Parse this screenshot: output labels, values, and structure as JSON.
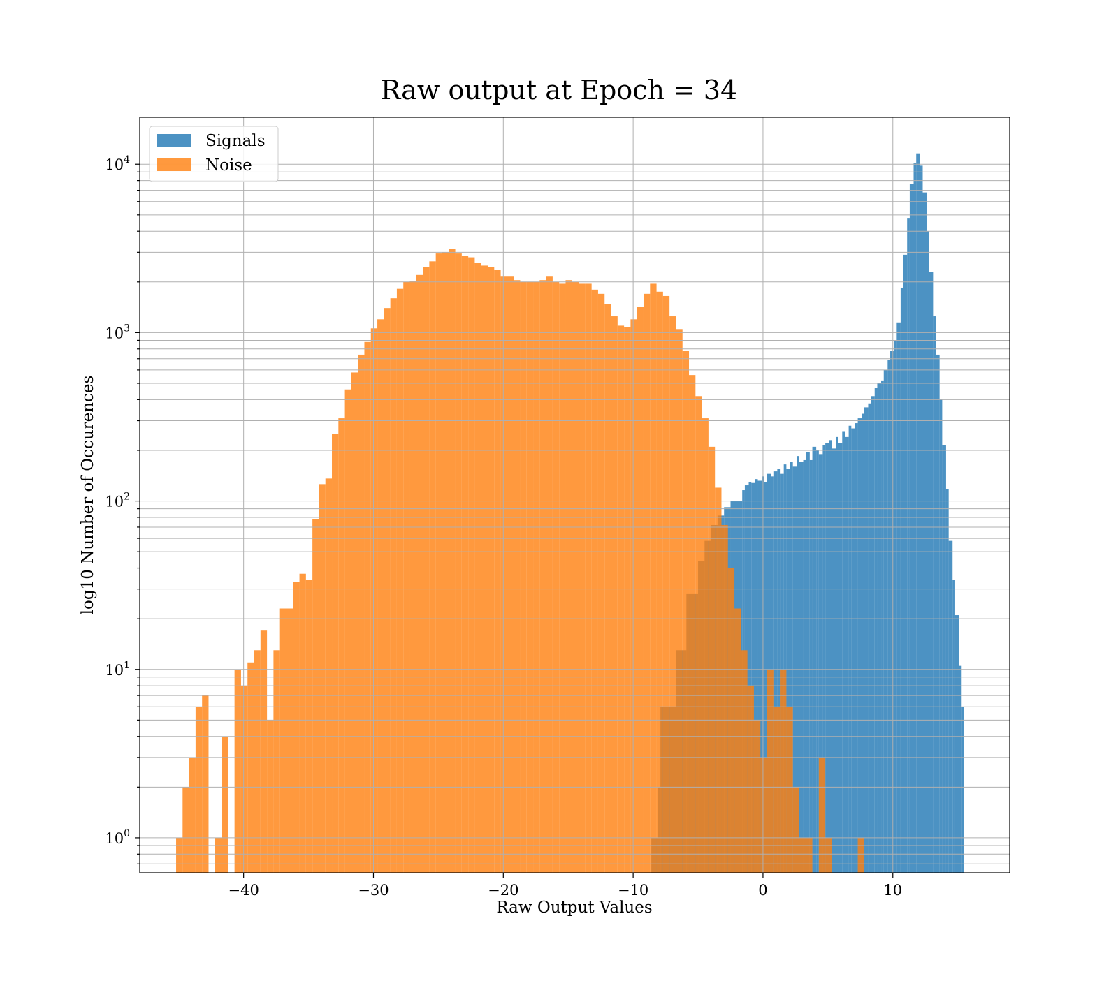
{
  "chart_data": {
    "type": "bar",
    "subtype": "histogram",
    "title": "Raw output at Epoch = 34",
    "xlabel": "Raw Output Values",
    "ylabel": "log10 Number of Occurences",
    "xlim": [
      -48,
      19
    ],
    "ylim": [
      0.62,
      19000
    ],
    "yscale": "log",
    "grid": true,
    "legend_position": "upper-left",
    "xticks": [
      -40,
      -30,
      -20,
      -10,
      0,
      10
    ],
    "xtick_labels": [
      "−40",
      "−30",
      "−20",
      "−10",
      "0",
      "10"
    ],
    "yticks": [
      {
        "value": 1,
        "base": "10",
        "exp": "0"
      },
      {
        "value": 10,
        "base": "10",
        "exp": "1"
      },
      {
        "value": 100,
        "base": "10",
        "exp": "2"
      },
      {
        "value": 1000,
        "base": "10",
        "exp": "3"
      },
      {
        "value": 10000,
        "base": "10",
        "exp": "4"
      }
    ],
    "series": [
      {
        "name": "Signals",
        "color": "#1f77b4",
        "opacity": 0.8,
        "bins": [
          [
            -8.6,
            1
          ],
          [
            -8.1,
            2
          ],
          [
            -7.9,
            6
          ],
          [
            -6.7,
            13
          ],
          [
            -5.9,
            28
          ],
          [
            -5.0,
            44
          ],
          [
            -4.5,
            58
          ],
          [
            -4.0,
            72
          ],
          [
            -3.5,
            82
          ],
          [
            -3.0,
            92
          ],
          [
            -2.5,
            100
          ],
          [
            -1.6,
            116
          ],
          [
            -1.4,
            124
          ],
          [
            -1.1,
            130
          ],
          [
            -0.9,
            128
          ],
          [
            -0.6,
            135
          ],
          [
            -0.4,
            132
          ],
          [
            -0.1,
            140
          ],
          [
            0.1,
            130
          ],
          [
            0.3,
            145
          ],
          [
            0.6,
            140
          ],
          [
            0.8,
            150
          ],
          [
            1.1,
            155
          ],
          [
            1.3,
            145
          ],
          [
            1.6,
            165
          ],
          [
            1.8,
            155
          ],
          [
            2.1,
            170
          ],
          [
            2.3,
            160
          ],
          [
            2.6,
            185
          ],
          [
            2.8,
            170
          ],
          [
            3.1,
            175
          ],
          [
            3.3,
            195
          ],
          [
            3.6,
            175
          ],
          [
            3.8,
            210
          ],
          [
            4.1,
            200
          ],
          [
            4.3,
            190
          ],
          [
            4.6,
            215
          ],
          [
            4.8,
            220
          ],
          [
            5.1,
            230
          ],
          [
            5.3,
            205
          ],
          [
            5.6,
            240
          ],
          [
            5.8,
            220
          ],
          [
            6.1,
            260
          ],
          [
            6.3,
            240
          ],
          [
            6.6,
            280
          ],
          [
            6.8,
            270
          ],
          [
            7.1,
            290
          ],
          [
            7.3,
            310
          ],
          [
            7.6,
            330
          ],
          [
            7.8,
            360
          ],
          [
            8.1,
            380
          ],
          [
            8.3,
            420
          ],
          [
            8.6,
            470
          ],
          [
            8.8,
            500
          ],
          [
            9.1,
            520
          ],
          [
            9.3,
            600
          ],
          [
            9.6,
            690
          ],
          [
            9.8,
            780
          ],
          [
            10.1,
            900
          ],
          [
            10.3,
            1150
          ],
          [
            10.6,
            1850
          ],
          [
            10.8,
            2900
          ],
          [
            11.1,
            4800
          ],
          [
            11.3,
            7600
          ],
          [
            11.6,
            10200
          ],
          [
            11.8,
            11600
          ],
          [
            12.1,
            9800
          ],
          [
            12.3,
            6800
          ],
          [
            12.6,
            4000
          ],
          [
            12.8,
            2300
          ],
          [
            13.1,
            1250
          ],
          [
            13.3,
            740
          ],
          [
            13.6,
            400
          ],
          [
            13.8,
            215
          ],
          [
            14.1,
            118
          ],
          [
            14.3,
            58
          ],
          [
            14.6,
            34
          ],
          [
            14.8,
            21
          ],
          [
            15.1,
            10.5
          ],
          [
            15.3,
            6
          ]
        ]
      },
      {
        "name": "Noise",
        "color": "#ff7f0e",
        "opacity": 0.8,
        "bins": [
          [
            -45.2,
            1
          ],
          [
            -44.7,
            2
          ],
          [
            -44.2,
            3
          ],
          [
            -43.7,
            6
          ],
          [
            -43.2,
            7
          ],
          [
            -42.7,
            0
          ],
          [
            -42.2,
            1
          ],
          [
            -41.7,
            4
          ],
          [
            -41.2,
            0
          ],
          [
            -40.7,
            10
          ],
          [
            -40.2,
            8
          ],
          [
            -39.7,
            11
          ],
          [
            -39.2,
            13
          ],
          [
            -38.7,
            17
          ],
          [
            -38.2,
            5
          ],
          [
            -37.7,
            13
          ],
          [
            -37.2,
            23
          ],
          [
            -36.7,
            23
          ],
          [
            -36.2,
            33
          ],
          [
            -35.7,
            37
          ],
          [
            -35.2,
            34
          ],
          [
            -34.7,
            78
          ],
          [
            -34.2,
            126
          ],
          [
            -33.7,
            136
          ],
          [
            -33.2,
            250
          ],
          [
            -32.7,
            310
          ],
          [
            -32.2,
            460
          ],
          [
            -31.7,
            580
          ],
          [
            -31.2,
            740
          ],
          [
            -30.7,
            880
          ],
          [
            -30.2,
            1060
          ],
          [
            -29.7,
            1200
          ],
          [
            -29.2,
            1400
          ],
          [
            -28.7,
            1600
          ],
          [
            -28.2,
            1820
          ],
          [
            -27.7,
            2000
          ],
          [
            -27.2,
            2020
          ],
          [
            -26.7,
            2200
          ],
          [
            -26.2,
            2450
          ],
          [
            -25.7,
            2650
          ],
          [
            -25.2,
            2950
          ],
          [
            -24.7,
            3000
          ],
          [
            -24.2,
            3150
          ],
          [
            -23.7,
            2950
          ],
          [
            -23.2,
            2850
          ],
          [
            -22.7,
            2800
          ],
          [
            -22.2,
            2600
          ],
          [
            -21.7,
            2500
          ],
          [
            -21.2,
            2450
          ],
          [
            -20.7,
            2350
          ],
          [
            -20.2,
            2150
          ],
          [
            -19.7,
            2150
          ],
          [
            -19.2,
            2050
          ],
          [
            -18.7,
            2000
          ],
          [
            -18.2,
            2000
          ],
          [
            -17.7,
            2000
          ],
          [
            -17.2,
            2050
          ],
          [
            -16.7,
            2150
          ],
          [
            -16.2,
            2000
          ],
          [
            -15.7,
            1950
          ],
          [
            -15.2,
            2050
          ],
          [
            -14.7,
            2000
          ],
          [
            -14.2,
            1950
          ],
          [
            -13.7,
            1950
          ],
          [
            -13.2,
            1800
          ],
          [
            -12.7,
            1700
          ],
          [
            -12.2,
            1480
          ],
          [
            -11.7,
            1250
          ],
          [
            -11.2,
            1100
          ],
          [
            -10.7,
            1080
          ],
          [
            -10.2,
            1200
          ],
          [
            -9.7,
            1420
          ],
          [
            -9.2,
            1700
          ],
          [
            -8.7,
            1950
          ],
          [
            -8.2,
            1750
          ],
          [
            -7.7,
            1650
          ],
          [
            -7.2,
            1250
          ],
          [
            -6.7,
            1050
          ],
          [
            -6.2,
            780
          ],
          [
            -5.7,
            560
          ],
          [
            -5.2,
            420
          ],
          [
            -4.7,
            310
          ],
          [
            -4.2,
            210
          ],
          [
            -3.7,
            120
          ],
          [
            -3.2,
            72
          ],
          [
            -2.7,
            40
          ],
          [
            -2.2,
            23
          ],
          [
            -1.7,
            13
          ],
          [
            -1.2,
            8
          ],
          [
            -0.7,
            5
          ],
          [
            -0.2,
            3
          ],
          [
            0.3,
            10
          ],
          [
            0.8,
            6
          ],
          [
            1.3,
            10
          ],
          [
            1.8,
            6
          ],
          [
            2.3,
            2
          ],
          [
            2.8,
            1
          ],
          [
            3.3,
            1
          ],
          [
            3.8,
            0
          ],
          [
            4.3,
            3
          ],
          [
            4.8,
            1
          ],
          [
            5.3,
            0
          ],
          [
            5.8,
            0
          ],
          [
            6.3,
            0
          ],
          [
            6.8,
            0
          ],
          [
            7.3,
            1
          ]
        ]
      }
    ]
  }
}
